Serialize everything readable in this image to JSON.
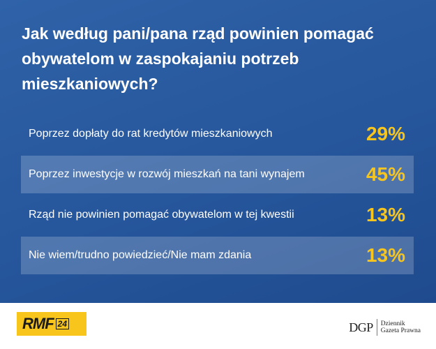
{
  "chart_data": {
    "type": "table",
    "title": "Jak według pani/pana rząd powinien pomagać obywatelom w zaspokajaniu potrzeb mieszkaniowych?",
    "rows": [
      {
        "label": "Poprzez dopłaty do rat kredytów mieszkaniowych",
        "value": 29,
        "display": "29%"
      },
      {
        "label": "Poprzez inwestycje w rozwój mieszkań na tani wynajem",
        "value": 45,
        "display": "45%"
      },
      {
        "label": "Rząd nie powinien pomagać obywatelom w tej kwestii",
        "value": 13,
        "display": "13%"
      },
      {
        "label": "Nie wiem/trudno powiedzieć/Nie mam zdania",
        "value": 13,
        "display": "13%"
      }
    ]
  },
  "footer": {
    "rmf_logo_text": "RMF",
    "rmf_logo_number": "24",
    "dgp_logo_mark": "DGP",
    "dgp_logo_name_line1": "Dziennik",
    "dgp_logo_name_line2": "Gazeta Prawna"
  },
  "colors": {
    "background": "#2a5aa0",
    "value_accent": "#f7c51c",
    "rmf_yellow": "#f7c51c"
  }
}
